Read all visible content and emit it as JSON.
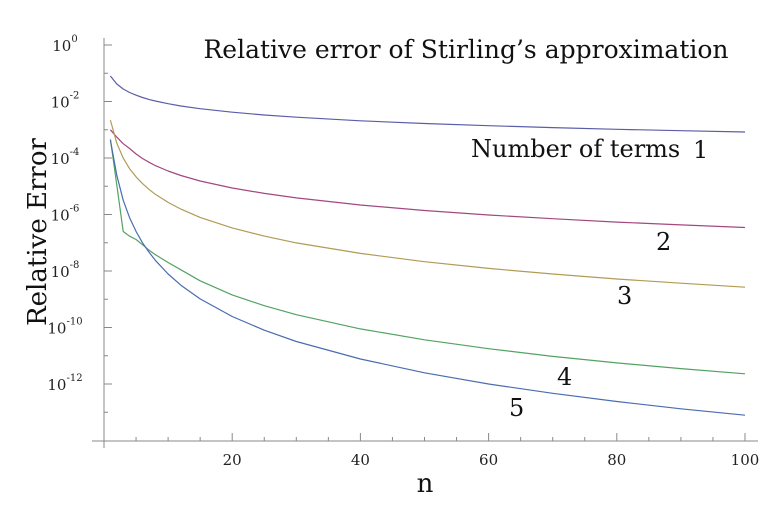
{
  "chart_data": {
    "type": "line",
    "title": "Relative error of Stirling’s approximation",
    "xlabel": "n",
    "ylabel": "Relative Error",
    "xlim": [
      0,
      100
    ],
    "ylim": [
      1e-14,
      1
    ],
    "yscale": "log",
    "x_ticks": [
      20,
      40,
      60,
      80,
      100
    ],
    "x_tick_labels": [
      "20",
      "40",
      "60",
      "80",
      "100"
    ],
    "y_tick_exponents": [
      "0",
      "-2",
      "-4",
      "-6",
      "-8",
      "-10",
      "-12"
    ],
    "y_tick_base": "10",
    "legend_title": "Number of terms",
    "x": [
      1,
      2,
      3,
      4,
      5,
      6,
      7,
      8,
      10,
      12,
      15,
      20,
      25,
      30,
      40,
      50,
      60,
      70,
      80,
      90,
      100
    ],
    "series": [
      {
        "name": "1",
        "color": "#5a5ea8",
        "values": [
          0.08,
          0.0417,
          0.0278,
          0.0208,
          0.0167,
          0.0139,
          0.0119,
          0.0104,
          0.00833,
          0.00694,
          0.00556,
          0.00417,
          0.00333,
          0.00278,
          0.00208,
          0.00167,
          0.00139,
          0.00119,
          0.00104,
          0.000926,
          0.000833
        ]
      },
      {
        "name": "2",
        "color": "#a34880",
        "values": [
          0.001,
          0.00055,
          0.00032,
          0.000217,
          0.000139,
          9.6e-05,
          7.1e-05,
          5.4e-05,
          3.47e-05,
          2.41e-05,
          1.54e-05,
          8.7e-06,
          5.6e-06,
          3.86e-06,
          2.17e-06,
          1.39e-06,
          9.6e-07,
          7.1e-07,
          5.4e-07,
          4.3e-07,
          3.47e-07
        ]
      },
      {
        "name": "3",
        "color": "#b19b55",
        "values": [
          0.0022,
          0.000335,
          9.9e-05,
          4.19e-05,
          2.14e-05,
          1.24e-05,
          7.8e-06,
          5.2e-06,
          2.68e-06,
          1.55e-06,
          7.9e-07,
          3.35e-07,
          1.72e-07,
          9.9e-08,
          4.19e-08,
          2.14e-08,
          1.24e-08,
          7.8e-09,
          5.2e-09,
          3.7e-09,
          2.68e-09
        ]
      },
      {
        "name": "4",
        "color": "#52a362",
        "values": [
          0.00046,
          1.1e-05,
          2.5e-07,
          1.7e-07,
          1.3e-07,
          8.5e-08,
          5.5e-08,
          3.8e-08,
          2e-08,
          1.1e-08,
          4.5e-09,
          1.43e-09,
          5.9e-10,
          2.83e-10,
          8.9e-11,
          3.66e-11,
          1.77e-11,
          9.5e-12,
          5.6e-12,
          3.5e-12,
          2.29e-12
        ]
      },
      {
        "name": "5",
        "color": "#4a6db0",
        "values": [
          0.00043,
          2.45e-05,
          3.2e-06,
          7.7e-07,
          2.5e-07,
          1e-07,
          4.7e-08,
          2.4e-08,
          7.8e-09,
          3.15e-09,
          1.03e-09,
          2.45e-10,
          8e-11,
          3.2e-11,
          7.7e-12,
          2.5e-12,
          1e-12,
          4.7e-13,
          2.4e-13,
          1.33e-13,
          7.84e-14
        ]
      }
    ],
    "grid": false,
    "legend": "inline labels"
  }
}
